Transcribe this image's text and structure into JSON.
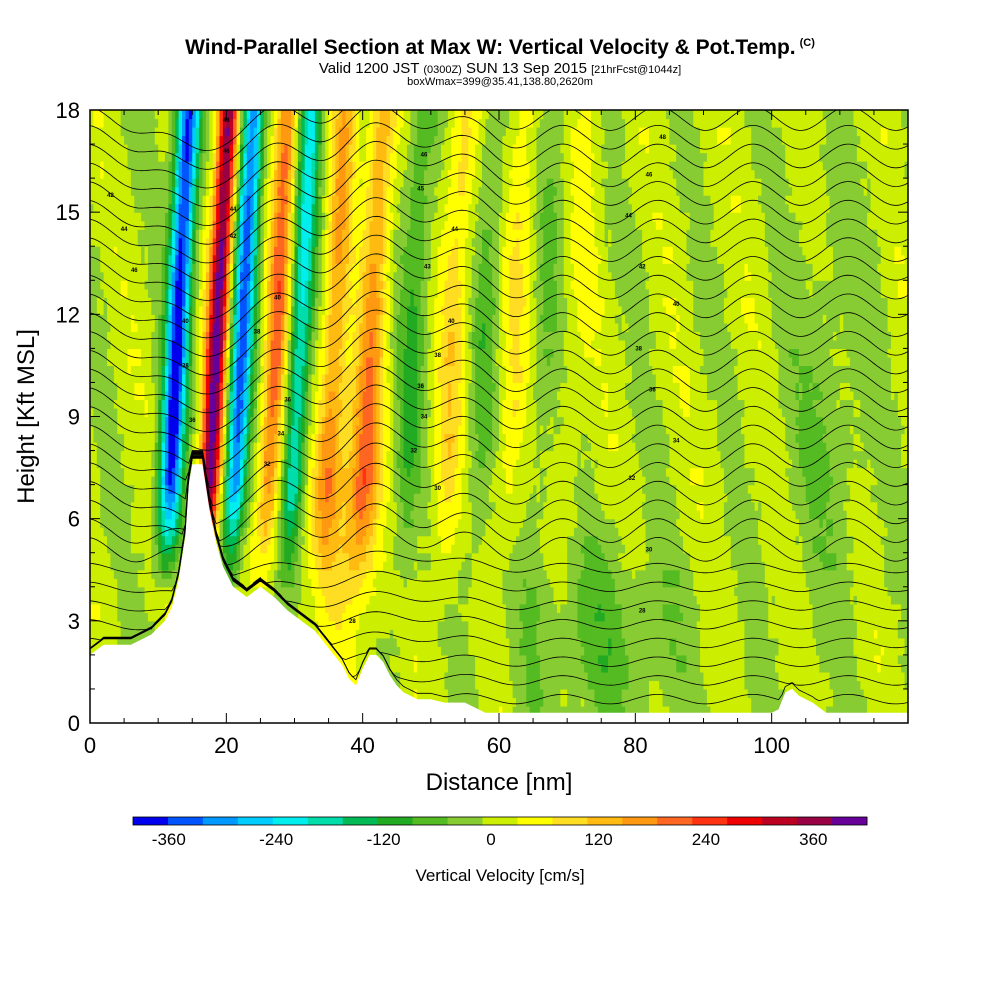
{
  "header": {
    "title": "Wind-Parallel Section at Max W: Vertical Velocity & Pot.Temp.",
    "title_mark": "(C)",
    "subtitle_a": "Valid 1200 JST",
    "subtitle_b": "(0300Z)",
    "subtitle_c": "SUN 13 Sep 2015",
    "subtitle_d": "[21hrFcst@1044z]",
    "subtitle_line2": "boxWmax=399@35.41,138.80,2620m"
  },
  "chart_data": {
    "type": "heatmap",
    "xlabel": "Distance [nm]",
    "ylabel": "Height [Kft MSL]",
    "xlim": [
      0,
      120
    ],
    "ylim": [
      0,
      18
    ],
    "x_ticks": [
      "0",
      "20",
      "40",
      "60",
      "80",
      "100"
    ],
    "y_ticks": [
      "0",
      "3",
      "6",
      "9",
      "12",
      "15",
      "18"
    ],
    "colorbar": {
      "label": "Vertical Velocity [cm/s]",
      "min": -400,
      "max": 420,
      "tick_labels": [
        "-360",
        "-240",
        "-120",
        "0",
        "120",
        "240",
        "360"
      ],
      "tick_values": [
        -360,
        -240,
        -120,
        0,
        120,
        240,
        360
      ],
      "colors": [
        "#0000ee",
        "#0055ff",
        "#0099ff",
        "#00ccff",
        "#00eeee",
        "#00ddaa",
        "#00bb55",
        "#22aa22",
        "#55bb22",
        "#88cc33",
        "#ccee00",
        "#ffff00",
        "#ffdd22",
        "#ffbb11",
        "#ff9911",
        "#ff6622",
        "#ff3311",
        "#ee0000",
        "#bb0022",
        "#990044",
        "#660099"
      ]
    },
    "terrain_kft": {
      "x": [
        0,
        2,
        6,
        9,
        11,
        12,
        13,
        14,
        14.5,
        15,
        16.5,
        17.5,
        18.5,
        19.5,
        21,
        23,
        25,
        27,
        29,
        31,
        33,
        35,
        37,
        38,
        39,
        40,
        41,
        42,
        43,
        44,
        45,
        46,
        47,
        48,
        49,
        50,
        52,
        55,
        58,
        60,
        62,
        65,
        70,
        75,
        80,
        90,
        100,
        101,
        102,
        103,
        104,
        105,
        106,
        108,
        110,
        115,
        120
      ],
      "y": [
        2.0,
        2.3,
        2.3,
        2.6,
        3.0,
        3.4,
        4.2,
        5.5,
        7.0,
        7.6,
        7.6,
        6.3,
        5.3,
        4.6,
        4.0,
        3.7,
        4.0,
        3.7,
        3.3,
        3.0,
        2.7,
        2.2,
        1.7,
        1.3,
        1.1,
        1.6,
        2.0,
        2.0,
        1.8,
        1.4,
        1.1,
        0.9,
        0.8,
        0.7,
        0.7,
        0.7,
        0.6,
        0.6,
        0.3,
        0.3,
        0.3,
        0.3,
        0.3,
        0.3,
        0.3,
        0.3,
        0.3,
        0.4,
        0.9,
        1.0,
        0.8,
        0.7,
        0.6,
        0.3,
        0.3,
        0.3,
        0.3
      ]
    },
    "isentrope_labels_C": [
      {
        "x": 3.0,
        "y": 15.5,
        "text": "42"
      },
      {
        "x": 5.0,
        "y": 14.5,
        "text": "44"
      },
      {
        "x": 6.5,
        "y": 13.3,
        "text": "46"
      },
      {
        "x": 14.0,
        "y": 11.8,
        "text": "40"
      },
      {
        "x": 14.0,
        "y": 10.5,
        "text": "38"
      },
      {
        "x": 15.0,
        "y": 8.9,
        "text": "36"
      },
      {
        "x": 20.0,
        "y": 17.7,
        "text": "48"
      },
      {
        "x": 20.0,
        "y": 16.8,
        "text": "46"
      },
      {
        "x": 21.0,
        "y": 15.1,
        "text": "44"
      },
      {
        "x": 21.0,
        "y": 14.3,
        "text": "42"
      },
      {
        "x": 24.5,
        "y": 11.5,
        "text": "38"
      },
      {
        "x": 27.5,
        "y": 12.5,
        "text": "40"
      },
      {
        "x": 29.0,
        "y": 9.5,
        "text": "36"
      },
      {
        "x": 28.0,
        "y": 8.5,
        "text": "34"
      },
      {
        "x": 26.0,
        "y": 7.6,
        "text": "32"
      },
      {
        "x": 49.0,
        "y": 16.7,
        "text": "46"
      },
      {
        "x": 48.5,
        "y": 15.7,
        "text": "45"
      },
      {
        "x": 53.5,
        "y": 14.5,
        "text": "44"
      },
      {
        "x": 49.5,
        "y": 13.4,
        "text": "43"
      },
      {
        "x": 53.0,
        "y": 11.8,
        "text": "40"
      },
      {
        "x": 51.0,
        "y": 10.8,
        "text": "38"
      },
      {
        "x": 48.5,
        "y": 9.9,
        "text": "36"
      },
      {
        "x": 49.0,
        "y": 9.0,
        "text": "34"
      },
      {
        "x": 47.5,
        "y": 8.0,
        "text": "32"
      },
      {
        "x": 51.0,
        "y": 6.9,
        "text": "30"
      },
      {
        "x": 38.5,
        "y": 3.0,
        "text": "28"
      },
      {
        "x": 84.0,
        "y": 17.2,
        "text": "48"
      },
      {
        "x": 82.0,
        "y": 16.1,
        "text": "46"
      },
      {
        "x": 79.0,
        "y": 14.9,
        "text": "44"
      },
      {
        "x": 81.0,
        "y": 13.4,
        "text": "42"
      },
      {
        "x": 86.0,
        "y": 12.3,
        "text": "40"
      },
      {
        "x": 80.5,
        "y": 11.0,
        "text": "38"
      },
      {
        "x": 82.5,
        "y": 9.8,
        "text": "36"
      },
      {
        "x": 86.0,
        "y": 8.3,
        "text": "34"
      },
      {
        "x": 79.5,
        "y": 7.2,
        "text": "32"
      },
      {
        "x": 82.0,
        "y": 5.1,
        "text": "30"
      },
      {
        "x": 81.0,
        "y": 3.3,
        "text": "28"
      }
    ]
  }
}
